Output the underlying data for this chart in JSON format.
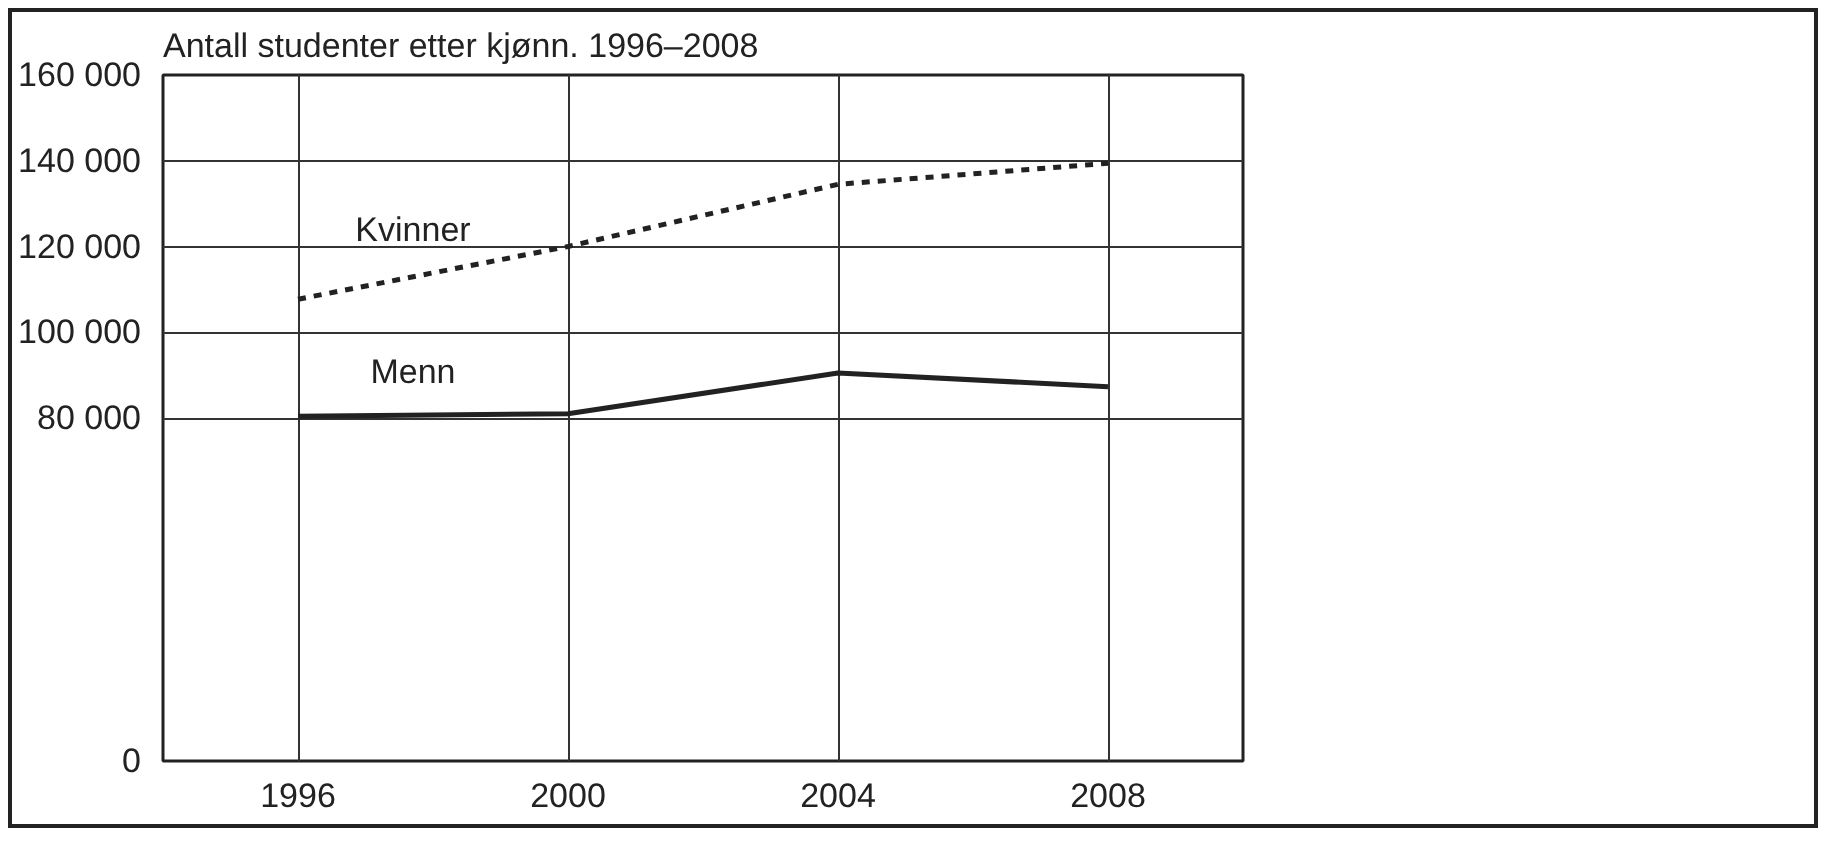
{
  "chart_data": {
    "type": "line",
    "title": "Antall studenter etter kjønn. 1996–2008",
    "x": [
      1996,
      2000,
      2004,
      2008
    ],
    "series": [
      {
        "name": "Kvinner",
        "color": "#222222",
        "line_style": "dashed",
        "values": [
          107700,
          120000,
          134500,
          139400
        ]
      },
      {
        "name": "Menn",
        "color": "#222222",
        "line_style": "solid",
        "values": [
          80400,
          81000,
          90500,
          87300
        ]
      }
    ],
    "xlim": [
      1994,
      2010
    ],
    "xticks": [
      1996,
      2000,
      2004,
      2008
    ],
    "ylim": [
      0,
      160000
    ],
    "yticks": [
      {
        "value": 0,
        "label": "0"
      },
      {
        "value": 80000,
        "label": "80 000"
      },
      {
        "value": 100000,
        "label": "100 000"
      },
      {
        "value": 120000,
        "label": "120 000"
      },
      {
        "value": 140000,
        "label": "140 000"
      },
      {
        "value": 160000,
        "label": "160 000"
      }
    ],
    "grid": true,
    "legend": false,
    "marker": "none"
  }
}
